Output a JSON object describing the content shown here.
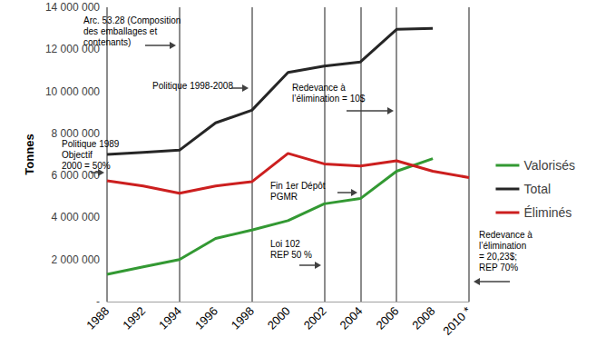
{
  "chart_data": {
    "type": "line",
    "y_label": "Tonnes",
    "categories": [
      "1988",
      "1992",
      "1994",
      "1996",
      "1998",
      "2000",
      "2002",
      "2004",
      "2006",
      "2008",
      "2010 *"
    ],
    "series": [
      {
        "name": "Valorisés",
        "color": "#339933",
        "values": [
          1300000,
          1650000,
          2000000,
          3000000,
          3400000,
          3850000,
          4650000,
          4900000,
          6200000,
          6800000,
          null
        ]
      },
      {
        "name": "Total",
        "color": "#262626",
        "values": [
          7000000,
          7100000,
          7200000,
          8500000,
          9100000,
          10900000,
          11200000,
          11400000,
          12950000,
          13000000,
          null
        ]
      },
      {
        "name": "Éliminés",
        "color": "#cc1f1f",
        "values": [
          5750000,
          5500000,
          5150000,
          5500000,
          5700000,
          7050000,
          6550000,
          6450000,
          6700000,
          6200000,
          5900000
        ]
      }
    ],
    "ylim": [
      0,
      14000000
    ],
    "yticks": [
      {
        "value": 0,
        "label": "-"
      },
      {
        "value": 2000000,
        "label": "2 000 000"
      },
      {
        "value": 4000000,
        "label": "4 000 000"
      },
      {
        "value": 6000000,
        "label": "6 000 000"
      },
      {
        "value": 8000000,
        "label": "8 000 000"
      },
      {
        "value": 10000000,
        "label": "10 000 000"
      },
      {
        "value": 12000000,
        "label": "12 000 000"
      },
      {
        "value": 14000000,
        "label": "14 000 000"
      }
    ],
    "grid": false,
    "legend": "right",
    "annotations": [
      {
        "text": "Arc. 53.28 (Composition\ndes emballages et\ncontenants)",
        "x": "1994"
      },
      {
        "text": "Politique 1989\nObjectif\n2000 = 50%",
        "x": "1988"
      },
      {
        "text": "Politique 1998-2008",
        "x": "1998"
      },
      {
        "text": "Redevance à\nl’élimination = 10$",
        "x": "2006"
      },
      {
        "text": "Fin 1er Dépôt\nPGMR",
        "x": "2004"
      },
      {
        "text": "Loi 102\nREP 50 %",
        "x": "2002"
      },
      {
        "text": "Redevance à\nl’élimination\n= 20,23$;\nREP 70%",
        "x": "2010 *"
      }
    ]
  }
}
